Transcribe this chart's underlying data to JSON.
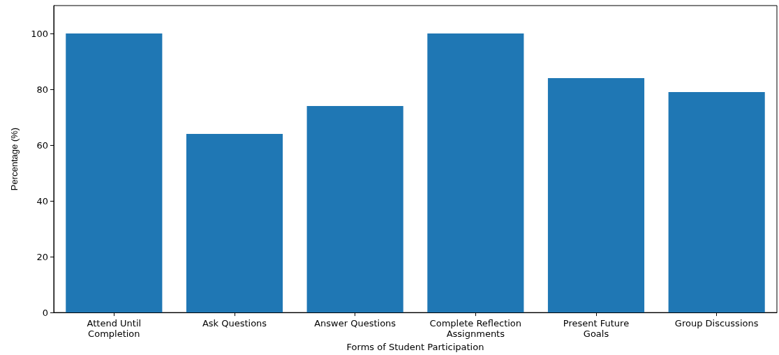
{
  "chart_data": {
    "type": "bar",
    "xlabel": "Forms of Student Participation",
    "ylabel": "Percentage (%)",
    "categories": [
      "Attend Until\nCompletion",
      "Ask Questions",
      "Answer Questions",
      "Complete Reflection\nAssignments",
      "Present Future\nGoals",
      "Group Discussions"
    ],
    "values": [
      100,
      64,
      74,
      100,
      84,
      79
    ],
    "color": "#1f77b4",
    "ylim": [
      0,
      110
    ],
    "yticks": [
      0,
      20,
      40,
      60,
      80,
      100
    ],
    "grid": false
  }
}
